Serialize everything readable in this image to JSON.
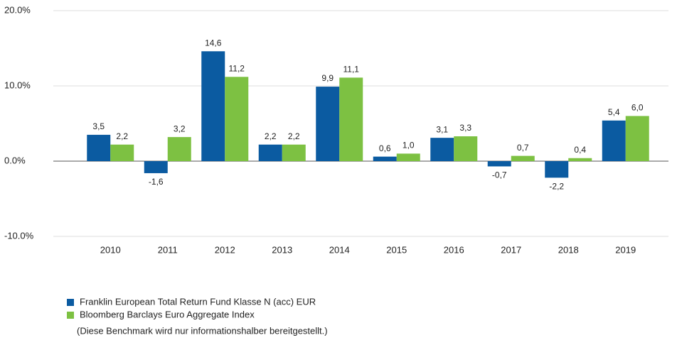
{
  "chart_data": {
    "type": "bar",
    "categories": [
      "2010",
      "2011",
      "2012",
      "2013",
      "2014",
      "2015",
      "2016",
      "2017",
      "2018",
      "2019"
    ],
    "series": [
      {
        "name": "Franklin European Total Return Fund Klasse N (acc) EUR",
        "color": "#0b5ba1",
        "values": [
          3.5,
          -1.6,
          14.6,
          2.2,
          9.9,
          0.6,
          3.1,
          -0.7,
          -2.2,
          5.4
        ],
        "value_labels": [
          "3,5",
          "-1,6",
          "14,6",
          "2,2",
          "9,9",
          "0,6",
          "3,1",
          "-0,7",
          "-2,2",
          "5,4"
        ]
      },
      {
        "name": "Bloomberg Barclays Euro Aggregate Index",
        "color": "#7dc142",
        "values": [
          2.2,
          3.2,
          11.2,
          2.2,
          11.1,
          1.0,
          3.3,
          0.7,
          0.4,
          6.0
        ],
        "value_labels": [
          "2,2",
          "3,2",
          "11,2",
          "2,2",
          "11,1",
          "1,0",
          "3,3",
          "0,7",
          "0,4",
          "6,0"
        ]
      }
    ],
    "ylim": [
      -10,
      20
    ],
    "yticks": [
      {
        "value": -10,
        "label": "-10.0%"
      },
      {
        "value": 0,
        "label": "0.0%"
      },
      {
        "value": 10,
        "label": "10.0%"
      },
      {
        "value": 20,
        "label": "20.0%"
      }
    ],
    "grid": true,
    "note": "(Diese Benchmark wird nur informationshalber bereitgestellt.)"
  }
}
